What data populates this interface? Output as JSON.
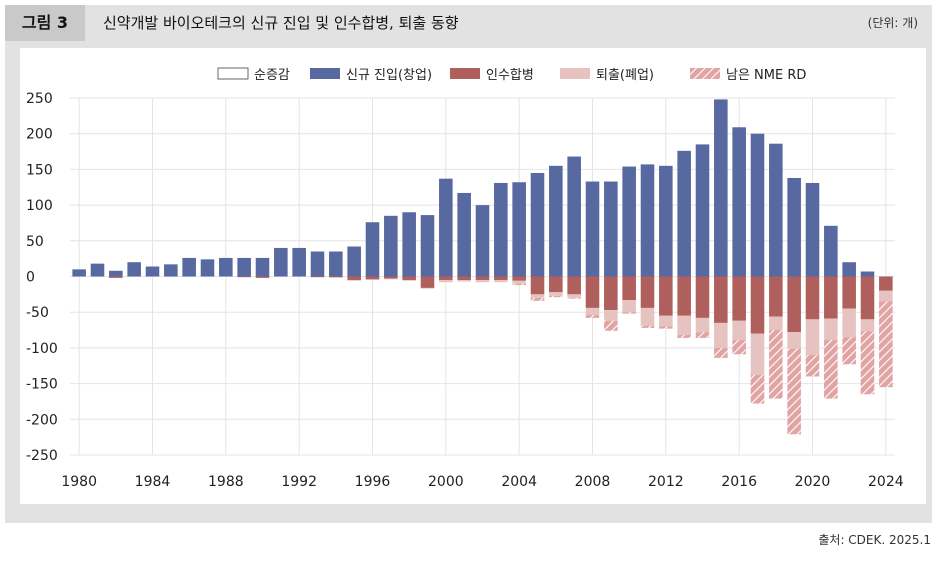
{
  "figure": {
    "label": "그림 3",
    "title": "신약개발 바이오테크의 신규 진입 및 인수합병, 퇴출 동향",
    "unit": "(단위: 개)",
    "source": "출처: CDEK. 2025.1"
  },
  "colors": {
    "new_entry": "#5868a0",
    "acquisition": "#b0605c",
    "exit": "#e6c3c1",
    "nme_remaining": "#e2a3a3",
    "hatch": "#ffffff",
    "frame": "#e2e2e2"
  },
  "chart_data": {
    "type": "bar",
    "stacked": true,
    "x_tick_labels": [
      "1980",
      "1984",
      "1988",
      "1992",
      "1996",
      "2000",
      "2004",
      "2008",
      "2012",
      "2016",
      "2020",
      "2024"
    ],
    "ylim": [
      -250,
      250
    ],
    "y_ticks": [
      250,
      200,
      150,
      100,
      50,
      0,
      -50,
      -100,
      -150,
      -200,
      -250
    ],
    "grid": true,
    "legend_position": "top",
    "years": [
      1980,
      1981,
      1982,
      1983,
      1984,
      1985,
      1986,
      1987,
      1988,
      1989,
      1990,
      1991,
      1992,
      1993,
      1994,
      1995,
      1996,
      1997,
      1998,
      1999,
      2000,
      2001,
      2002,
      2003,
      2004,
      2005,
      2006,
      2007,
      2008,
      2009,
      2010,
      2011,
      2012,
      2013,
      2014,
      2015,
      2016,
      2017,
      2018,
      2019,
      2020,
      2021,
      2022,
      2023,
      2024
    ],
    "series": [
      {
        "name": "순증감",
        "style": "outline",
        "values": []
      },
      {
        "name": "신규 진입(창업)",
        "style": "solid-blue",
        "values": [
          10,
          18,
          8,
          20,
          14,
          17,
          26,
          24,
          26,
          26,
          26,
          40,
          40,
          35,
          35,
          42,
          76,
          85,
          90,
          86,
          137,
          117,
          100,
          131,
          132,
          145,
          155,
          168,
          133,
          133,
          154,
          157,
          155,
          176,
          185,
          248,
          209,
          200,
          186,
          138,
          131,
          71,
          20,
          7,
          0
        ]
      },
      {
        "name": "인수합병",
        "style": "solid-red",
        "values": [
          0,
          0,
          -2,
          0,
          0,
          0,
          0,
          0,
          0,
          -1,
          -2,
          0,
          0,
          -1,
          -1,
          -5,
          -4,
          -3,
          -5,
          -16,
          -5,
          -5,
          -5,
          -5,
          -6,
          -25,
          -22,
          -25,
          -44,
          -47,
          -33,
          -44,
          -55,
          -55,
          -58,
          -65,
          -62,
          -80,
          -56,
          -78,
          -60,
          -59,
          -45,
          -60,
          -20
        ]
      },
      {
        "name": "퇴출(폐업)",
        "style": "solid-pink",
        "values": [
          0,
          0,
          0,
          0,
          0,
          0,
          0,
          0,
          0,
          0,
          0,
          0,
          0,
          0,
          -1,
          -1,
          -1,
          -1,
          -1,
          -1,
          -3,
          -2,
          -3,
          -3,
          -4,
          -5,
          -5,
          -5,
          -10,
          -15,
          -17,
          -25,
          -15,
          -27,
          -20,
          -35,
          -27,
          -58,
          -19,
          -23,
          -50,
          -30,
          -40,
          -17,
          -15
        ]
      },
      {
        "name": "남은 NME RD",
        "style": "hatched",
        "values": [
          0,
          0,
          0,
          0,
          0,
          0,
          0,
          0,
          0,
          0,
          0,
          0,
          0,
          0,
          0,
          0,
          0,
          0,
          0,
          0,
          0,
          0,
          0,
          0,
          -2,
          -4,
          -2,
          -1,
          -4,
          -14,
          -2,
          -3,
          -3,
          -4,
          -8,
          -14,
          -20,
          -40,
          -96,
          -120,
          -30,
          -82,
          -38,
          -88,
          -120
        ]
      }
    ]
  }
}
